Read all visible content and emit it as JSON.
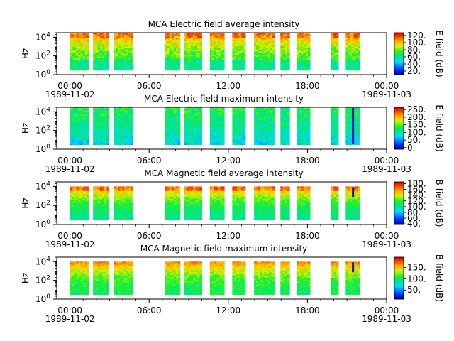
{
  "chart_data": {
    "type": "heatmap",
    "x_ticks": [
      "00:00",
      "06:00",
      "12:00",
      "18:00",
      "00:00"
    ],
    "date_start": "1989-11-02",
    "date_end": "1989-11-03",
    "y_ticks": [
      "10",
      "10",
      "10"
    ],
    "y_tick_exponents": [
      "0",
      "2",
      "4"
    ],
    "ylabel": "Hz",
    "yscale": "log",
    "ylim": [
      1,
      30000
    ],
    "xlim_hours": [
      -1,
      24
    ],
    "data_segments_hours": [
      [
        0.0,
        1.45
      ],
      [
        1.75,
        2.95
      ],
      [
        3.35,
        4.75
      ],
      [
        7.2,
        8.35
      ],
      [
        8.65,
        10.0
      ],
      [
        10.6,
        11.7
      ],
      [
        12.3,
        13.3
      ],
      [
        13.95,
        15.5
      ],
      [
        15.95,
        16.65
      ],
      [
        17.2,
        18.2
      ],
      [
        19.8,
        20.35
      ],
      [
        20.9,
        21.95
      ]
    ],
    "panels": [
      {
        "title": "MCA  Electric field average intensity",
        "colorbar_label": "E field (dB)",
        "colorbar_ticks": [
          "20.",
          "40.",
          "60.",
          "80.",
          "100.",
          "120."
        ],
        "colorbar_range": [
          10,
          128
        ],
        "colormap": "rainbow",
        "freq_top": 30000
      },
      {
        "title": "MCA  Electric field maximum intensity",
        "colorbar_label": "E field (dB)",
        "colorbar_ticks": [
          "0.",
          "50.",
          "100.",
          "150.",
          "200.",
          "250."
        ],
        "colorbar_range": [
          -10,
          265
        ],
        "colormap": "rainbow",
        "freq_top": 30000
      },
      {
        "title": "MCA  Magnetic field average intensity",
        "colorbar_label": "B field (dB)",
        "colorbar_ticks": [
          "40.",
          "60.",
          "80.",
          "100.",
          "120.",
          "140.",
          "160.",
          "180."
        ],
        "colorbar_range": [
          38,
          186
        ],
        "colormap": "rainbow",
        "freq_top": 10000
      },
      {
        "title": "MCA  Magnetic field maximum intensity",
        "colorbar_label": "B field (dB)",
        "colorbar_ticks": [
          "50.",
          "100.",
          "150."
        ],
        "colorbar_range": [
          10,
          195
        ],
        "colormap": "rainbow",
        "freq_top": 10000
      }
    ]
  }
}
